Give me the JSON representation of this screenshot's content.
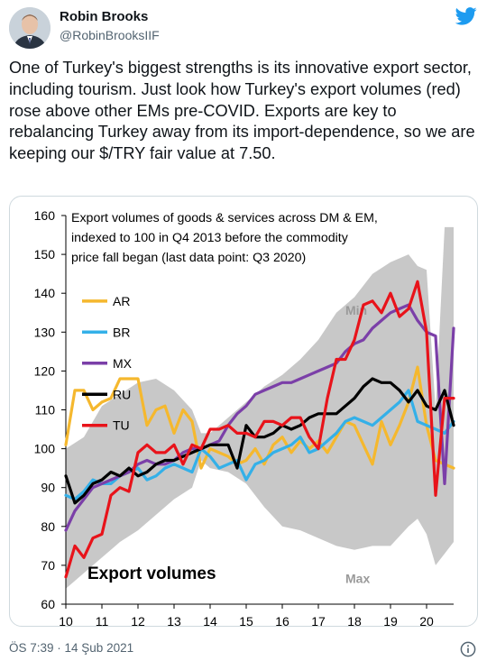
{
  "tweet": {
    "author_name": "Robin Brooks",
    "author_handle": "@RobinBrooksIIF",
    "text": "One of Turkey's biggest strengths is its innovative export sector, including tourism. Just look how Turkey's export volumes (red) rose above other EMs pre-COVID. Exports are key to rebalancing Turkey away from its import-dependence, so we are keeping our $/TRY fair value at 7.50.",
    "timestamp": "ÖS 7:39 · 14 Şub 2021",
    "brand_color": "#1d9bf0",
    "icons": {
      "logo": "twitter-bird-icon",
      "info": "info-icon"
    }
  },
  "chart_data": {
    "type": "line",
    "title_lines": [
      "Export volumes of goods & services across DM & EM,",
      "indexed to 100 in Q4 2013  before the commodity",
      "price fall began (last data point: Q3  2020)"
    ],
    "overlay_label": "Export volumes",
    "band_labels": {
      "top": "Min",
      "bottom": "Max"
    },
    "ylim": [
      60,
      160
    ],
    "xlim": [
      2010,
      2020.75
    ],
    "y_ticks": [
      "60",
      "70",
      "80",
      "90",
      "100",
      "110",
      "120",
      "130",
      "140",
      "150",
      "160"
    ],
    "x_ticks": [
      "10",
      "11",
      "12",
      "13",
      "14",
      "15",
      "16",
      "17",
      "18",
      "19",
      "20"
    ],
    "band": {
      "x": [
        2010,
        2010.5,
        2011,
        2011.5,
        2012,
        2012.5,
        2013,
        2013.5,
        2013.75,
        2014,
        2014.5,
        2015,
        2015.5,
        2016,
        2016.5,
        2017,
        2017.5,
        2018,
        2018.5,
        2019,
        2019.5,
        2019.75,
        2020,
        2020.25,
        2020.5,
        2020.75
      ],
      "upper": [
        100,
        103,
        111,
        114,
        117,
        118,
        115,
        110,
        104,
        104,
        108,
        112,
        116,
        119,
        123,
        128,
        135,
        139,
        145,
        148,
        150,
        147,
        146,
        110,
        157,
        157
      ],
      "lower": [
        64,
        68,
        72,
        76,
        79,
        83,
        87,
        90,
        97,
        95,
        94,
        91,
        85,
        80,
        79,
        77,
        75,
        74,
        75,
        75,
        80,
        82,
        78,
        70,
        73,
        76
      ],
      "color": "#c8c8c8"
    },
    "series": [
      {
        "name": "AR",
        "color": "#f5b82e",
        "x": [
          2010,
          2010.25,
          2010.5,
          2010.75,
          2011,
          2011.25,
          2011.5,
          2011.75,
          2012,
          2012.25,
          2012.5,
          2012.75,
          2013,
          2013.25,
          2013.5,
          2013.75,
          2014,
          2014.25,
          2014.5,
          2014.75,
          2015,
          2015.25,
          2015.5,
          2015.75,
          2016,
          2016.25,
          2016.5,
          2016.75,
          2017,
          2017.25,
          2017.5,
          2017.75,
          2018,
          2018.25,
          2018.5,
          2018.75,
          2019,
          2019.25,
          2019.5,
          2019.75,
          2020,
          2020.25,
          2020.5,
          2020.75
        ],
        "values": [
          101,
          115,
          115,
          110,
          112,
          113,
          118,
          118,
          118,
          106,
          110,
          111,
          104,
          110,
          107,
          95,
          100,
          99,
          98,
          96,
          97,
          100,
          96,
          101,
          103,
          99,
          102,
          100,
          102,
          99,
          103,
          107,
          106,
          101,
          96,
          107,
          101,
          106,
          112,
          121,
          106,
          97,
          96,
          95
        ]
      },
      {
        "name": "BR",
        "color": "#34b0e8",
        "x": [
          2010,
          2010.25,
          2010.5,
          2010.75,
          2011,
          2011.25,
          2011.5,
          2011.75,
          2012,
          2012.25,
          2012.5,
          2012.75,
          2013,
          2013.25,
          2013.5,
          2013.75,
          2014,
          2014.25,
          2014.5,
          2014.75,
          2015,
          2015.25,
          2015.5,
          2015.75,
          2016,
          2016.25,
          2016.5,
          2016.75,
          2017,
          2017.25,
          2017.5,
          2017.75,
          2018,
          2018.25,
          2018.5,
          2018.75,
          2019,
          2019.25,
          2019.5,
          2019.75,
          2020,
          2020.25,
          2020.5,
          2020.75
        ],
        "values": [
          88,
          87,
          89,
          92,
          91,
          91,
          93,
          94,
          95,
          92,
          93,
          95,
          96,
          95,
          94,
          100,
          98,
          95,
          96,
          97,
          92,
          96,
          97,
          99,
          100,
          101,
          103,
          99,
          100,
          102,
          104,
          107,
          108,
          107,
          106,
          108,
          110,
          112,
          115,
          107,
          106,
          105,
          104,
          107
        ]
      },
      {
        "name": "MX",
        "color": "#7b3fa8",
        "x": [
          2010,
          2010.25,
          2010.5,
          2010.75,
          2011,
          2011.25,
          2011.5,
          2011.75,
          2012,
          2012.25,
          2012.5,
          2012.75,
          2013,
          2013.25,
          2013.5,
          2013.75,
          2014,
          2014.25,
          2014.5,
          2014.75,
          2015,
          2015.25,
          2015.5,
          2015.75,
          2016,
          2016.25,
          2016.5,
          2016.75,
          2017,
          2017.25,
          2017.5,
          2017.75,
          2018,
          2018.25,
          2018.5,
          2018.75,
          2019,
          2019.25,
          2019.5,
          2019.75,
          2020,
          2020.25,
          2020.5,
          2020.75
        ],
        "values": [
          79,
          84,
          87,
          90,
          91,
          92,
          93,
          94,
          96,
          97,
          96,
          96,
          97,
          99,
          100,
          100,
          101,
          102,
          106,
          109,
          111,
          114,
          115,
          116,
          117,
          117,
          118,
          119,
          120,
          121,
          122,
          125,
          127,
          128,
          131,
          133,
          135,
          136,
          137,
          133,
          130,
          129,
          91,
          131
        ]
      },
      {
        "name": "RU",
        "color": "#000000",
        "x": [
          2010,
          2010.25,
          2010.5,
          2010.75,
          2011,
          2011.25,
          2011.5,
          2011.75,
          2012,
          2012.25,
          2012.5,
          2012.75,
          2013,
          2013.25,
          2013.5,
          2013.75,
          2014,
          2014.25,
          2014.5,
          2014.75,
          2015,
          2015.25,
          2015.5,
          2015.75,
          2016,
          2016.25,
          2016.5,
          2016.75,
          2017,
          2017.25,
          2017.5,
          2017.75,
          2018,
          2018.25,
          2018.5,
          2018.75,
          2019,
          2019.25,
          2019.5,
          2019.75,
          2020,
          2020.25,
          2020.5,
          2020.75
        ],
        "values": [
          93,
          86,
          88,
          91,
          92,
          94,
          93,
          95,
          93,
          94,
          96,
          97,
          97,
          98,
          99,
          100,
          101,
          101,
          101,
          95,
          106,
          103,
          103,
          104,
          106,
          105,
          106,
          108,
          109,
          109,
          109,
          111,
          113,
          116,
          118,
          117,
          117,
          115,
          112,
          115,
          111,
          110,
          115,
          106
        ]
      },
      {
        "name": "TU",
        "color": "#e8131a",
        "x": [
          2010,
          2010.25,
          2010.5,
          2010.75,
          2011,
          2011.25,
          2011.5,
          2011.75,
          2012,
          2012.25,
          2012.5,
          2012.75,
          2013,
          2013.25,
          2013.5,
          2013.75,
          2014,
          2014.25,
          2014.5,
          2014.75,
          2015,
          2015.25,
          2015.5,
          2015.75,
          2016,
          2016.25,
          2016.5,
          2016.75,
          2017,
          2017.25,
          2017.5,
          2017.75,
          2018,
          2018.25,
          2018.5,
          2018.75,
          2019,
          2019.25,
          2019.5,
          2019.75,
          2020,
          2020.25,
          2020.5,
          2020.75
        ],
        "values": [
          67,
          75,
          72,
          77,
          78,
          88,
          90,
          89,
          99,
          101,
          99,
          99,
          101,
          96,
          101,
          100,
          105,
          105,
          106,
          104,
          104,
          103,
          107,
          107,
          106,
          108,
          108,
          103,
          100,
          113,
          123,
          123,
          128,
          137,
          138,
          135,
          140,
          134,
          136,
          143,
          130,
          88,
          113,
          113
        ]
      }
    ]
  }
}
